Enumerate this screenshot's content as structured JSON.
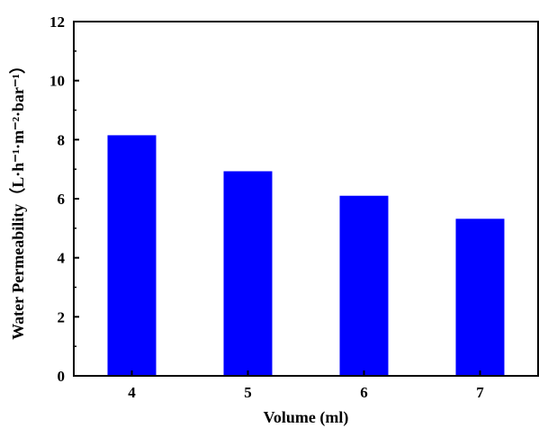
{
  "chart_data": {
    "type": "bar",
    "categories": [
      "4",
      "5",
      "6",
      "7"
    ],
    "values": [
      8.15,
      6.93,
      6.1,
      5.32
    ],
    "xlabel": "Volume (ml)",
    "ylabel": "Water Permeability（L·h⁻¹·m⁻²·bar⁻¹）",
    "ylim": [
      0,
      12
    ],
    "yticks": [
      "0",
      "2",
      "4",
      "6",
      "8",
      "10",
      "12"
    ],
    "bar_color": "#0000ff",
    "grid": false,
    "legend": "none"
  }
}
